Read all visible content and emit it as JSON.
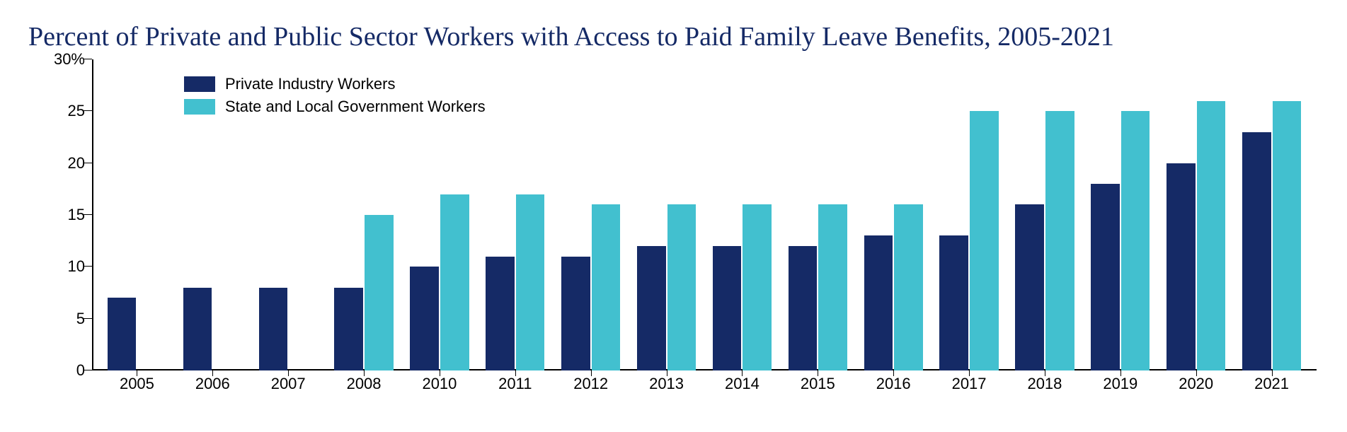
{
  "chart": {
    "type": "bar",
    "title": "Percent of Private and Public Sector Workers with Access to Paid Family Leave Benefits, 2005-2021",
    "title_color": "#152a66",
    "title_fontsize": 38,
    "background_color": "#ffffff",
    "axis_color": "#000000",
    "tick_label_color": "#000000",
    "tick_label_fontsize": 22,
    "y": {
      "min": 0,
      "max": 30,
      "step": 5,
      "ticks": [
        {
          "v": 0,
          "label": "0"
        },
        {
          "v": 5,
          "label": "5"
        },
        {
          "v": 10,
          "label": "10"
        },
        {
          "v": 15,
          "label": "15"
        },
        {
          "v": 20,
          "label": "20"
        },
        {
          "v": 25,
          "label": "25"
        },
        {
          "v": 30,
          "label": "30%"
        }
      ]
    },
    "categories": [
      "2005",
      "2006",
      "2007",
      "2008",
      "2010",
      "2011",
      "2012",
      "2013",
      "2014",
      "2015",
      "2016",
      "2017",
      "2018",
      "2019",
      "2020",
      "2021"
    ],
    "series": [
      {
        "name": "Private Industry Workers",
        "color": "#152a66",
        "values": [
          7,
          8,
          8,
          8,
          10,
          11,
          11,
          12,
          12,
          12,
          13,
          13,
          16,
          18,
          20,
          23
        ]
      },
      {
        "name": "State and Local Government Workers",
        "color": "#42c0cf",
        "values": [
          null,
          null,
          null,
          15,
          17,
          17,
          16,
          16,
          16,
          16,
          16,
          25,
          25,
          25,
          26,
          26
        ]
      }
    ],
    "legend": {
      "position": "inside-top-left",
      "fontsize": 22,
      "swatch_width": 44,
      "swatch_height": 22
    },
    "bar_width_ratio": 0.38
  }
}
